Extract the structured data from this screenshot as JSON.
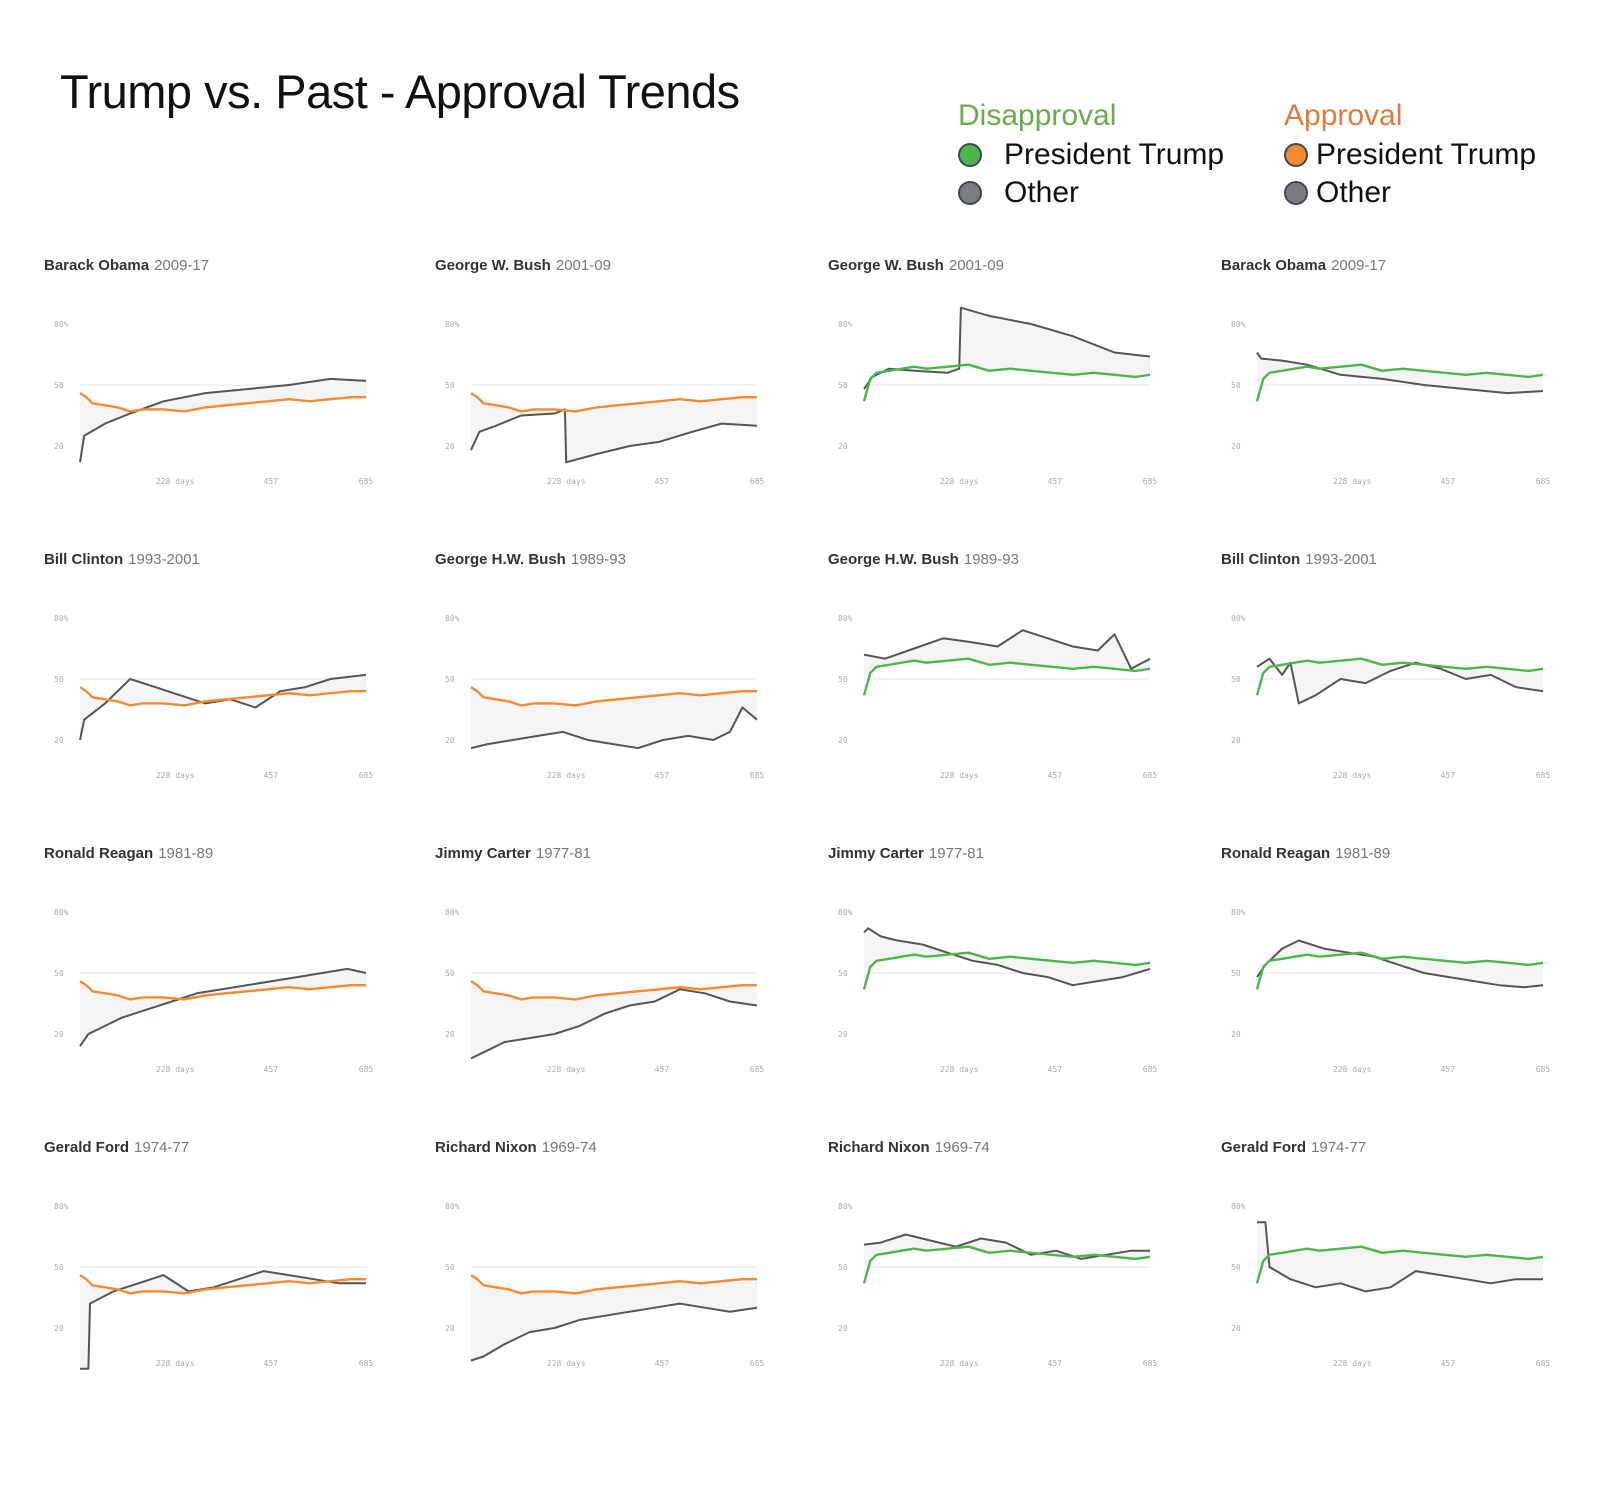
{
  "title": "Trump vs. Past - Approval Trends",
  "colors": {
    "trump_approval": "#f58a33",
    "trump_disapproval": "#4cb64a",
    "other": "#555555",
    "disapproval_heading": "#6aab4a",
    "approval_heading": "#e07b3c",
    "other_dot": "#7b7d82"
  },
  "legend": {
    "disapproval": {
      "heading": "Disapproval",
      "items": [
        {
          "label": "President Trump"
        },
        {
          "label": "Other"
        }
      ]
    },
    "approval": {
      "heading": "Approval",
      "items": [
        {
          "label": "President Trump"
        },
        {
          "label": "Other"
        }
      ]
    }
  },
  "axis": {
    "y_ticks": [
      "80%",
      "50",
      "20"
    ],
    "x_ticks": [
      "228 days",
      "457",
      "685"
    ]
  },
  "chart_data": {
    "type": "line",
    "title": "Trump vs. Past - Approval Trends",
    "x_unit": "days",
    "xlim": [
      0,
      685
    ],
    "ylim": [
      0,
      100
    ],
    "reference_line": 50,
    "trump": {
      "approval": {
        "x": [
          0,
          15,
          30,
          60,
          90,
          120,
          150,
          200,
          250,
          300,
          350,
          400,
          450,
          500,
          550,
          600,
          650,
          685
        ],
        "y": [
          42,
          53,
          56,
          57,
          58,
          59,
          58,
          59,
          60,
          57,
          58,
          57,
          56,
          55,
          56,
          55,
          54,
          55
        ]
      },
      "disapproval": {
        "x": [
          0,
          15,
          30,
          60,
          90,
          120,
          150,
          200,
          250,
          300,
          350,
          400,
          450,
          500,
          550,
          600,
          650,
          685
        ],
        "y": [
          46,
          44,
          41,
          40,
          39,
          37,
          38,
          38,
          37,
          39,
          40,
          41,
          42,
          43,
          42,
          43,
          44,
          44
        ]
      }
    },
    "panels": [
      {
        "name": "Barack Obama",
        "years": "2009-17",
        "measure": "disapproval",
        "x": [
          0,
          10,
          60,
          120,
          200,
          300,
          400,
          500,
          600,
          685
        ],
        "y": [
          12,
          25,
          31,
          36,
          42,
          46,
          48,
          50,
          53,
          52
        ]
      },
      {
        "name": "George W. Bush",
        "years": "2001-09",
        "measure": "disapproval",
        "x": [
          0,
          20,
          60,
          120,
          200,
          225,
          228,
          300,
          380,
          450,
          530,
          600,
          685
        ],
        "y": [
          18,
          27,
          30,
          35,
          36,
          38,
          12,
          16,
          20,
          22,
          27,
          31,
          30
        ]
      },
      {
        "name": "George W. Bush",
        "years": "2001-09",
        "measure": "approval",
        "x": [
          0,
          20,
          60,
          120,
          200,
          228,
          232,
          300,
          400,
          500,
          600,
          685
        ],
        "y": [
          48,
          54,
          58,
          57,
          56,
          58,
          88,
          84,
          80,
          74,
          66,
          64
        ]
      },
      {
        "name": "Barack Obama",
        "years": "2009-17",
        "measure": "approval",
        "x": [
          0,
          10,
          60,
          120,
          200,
          300,
          400,
          500,
          600,
          685
        ],
        "y": [
          66,
          63,
          62,
          60,
          55,
          53,
          50,
          48,
          46,
          47
        ]
      },
      {
        "name": "Bill Clinton",
        "years": "1993-2001",
        "measure": "disapproval",
        "x": [
          0,
          10,
          60,
          120,
          180,
          240,
          300,
          360,
          420,
          480,
          540,
          600,
          685
        ],
        "y": [
          20,
          30,
          38,
          50,
          46,
          42,
          38,
          40,
          36,
          44,
          46,
          50,
          52
        ]
      },
      {
        "name": "George H.W. Bush",
        "years": "1989-93",
        "measure": "disapproval",
        "x": [
          0,
          40,
          100,
          160,
          220,
          280,
          340,
          400,
          460,
          520,
          580,
          620,
          650,
          685
        ],
        "y": [
          16,
          18,
          20,
          22,
          24,
          20,
          18,
          16,
          20,
          22,
          20,
          24,
          36,
          30
        ]
      },
      {
        "name": "George H.W. Bush",
        "years": "1989-93",
        "measure": "approval",
        "x": [
          0,
          50,
          120,
          190,
          260,
          320,
          380,
          440,
          500,
          560,
          600,
          640,
          685
        ],
        "y": [
          62,
          60,
          65,
          70,
          68,
          66,
          74,
          70,
          66,
          64,
          72,
          55,
          60
        ]
      },
      {
        "name": "Bill Clinton",
        "years": "1993-2001",
        "measure": "approval",
        "x": [
          0,
          30,
          60,
          80,
          100,
          140,
          200,
          260,
          320,
          380,
          440,
          500,
          560,
          620,
          685
        ],
        "y": [
          56,
          60,
          52,
          58,
          38,
          42,
          50,
          48,
          54,
          58,
          55,
          50,
          52,
          46,
          44
        ]
      },
      {
        "name": "Ronald Reagan",
        "years": "1981-89",
        "measure": "disapproval",
        "x": [
          0,
          20,
          60,
          100,
          160,
          220,
          280,
          340,
          400,
          460,
          520,
          580,
          640,
          685
        ],
        "y": [
          14,
          20,
          24,
          28,
          32,
          36,
          40,
          42,
          44,
          46,
          48,
          50,
          52,
          50
        ]
      },
      {
        "name": "Jimmy Carter",
        "years": "1977-81",
        "measure": "disapproval",
        "x": [
          0,
          40,
          80,
          140,
          200,
          260,
          320,
          380,
          440,
          500,
          560,
          620,
          685
        ],
        "y": [
          8,
          12,
          16,
          18,
          20,
          24,
          30,
          34,
          36,
          42,
          40,
          36,
          34
        ]
      },
      {
        "name": "Jimmy Carter",
        "years": "1977-81",
        "measure": "approval",
        "x": [
          0,
          10,
          40,
          80,
          140,
          200,
          260,
          320,
          380,
          440,
          500,
          560,
          620,
          685
        ],
        "y": [
          70,
          72,
          68,
          66,
          64,
          60,
          56,
          54,
          50,
          48,
          44,
          46,
          48,
          52
        ]
      },
      {
        "name": "Ronald Reagan",
        "years": "1981-89",
        "measure": "approval",
        "x": [
          0,
          20,
          60,
          100,
          160,
          220,
          280,
          340,
          400,
          460,
          520,
          580,
          640,
          685
        ],
        "y": [
          48,
          54,
          62,
          66,
          62,
          60,
          58,
          54,
          50,
          48,
          46,
          44,
          43,
          44
        ]
      },
      {
        "name": "Gerald Ford",
        "years": "1974-77",
        "measure": "disapproval",
        "x": [
          0,
          20,
          24,
          80,
          140,
          200,
          260,
          320,
          380,
          440,
          500,
          560,
          620,
          685
        ],
        "y": [
          0,
          0,
          32,
          38,
          42,
          46,
          38,
          40,
          44,
          48,
          46,
          44,
          42,
          42
        ]
      },
      {
        "name": "Richard Nixon",
        "years": "1969-74",
        "measure": "disapproval",
        "x": [
          0,
          30,
          80,
          140,
          200,
          260,
          320,
          380,
          440,
          500,
          560,
          620,
          685
        ],
        "y": [
          4,
          6,
          12,
          18,
          20,
          24,
          26,
          28,
          30,
          32,
          30,
          28,
          30
        ]
      },
      {
        "name": "Richard Nixon",
        "years": "1969-74",
        "measure": "approval",
        "x": [
          0,
          40,
          100,
          160,
          220,
          280,
          340,
          400,
          460,
          520,
          580,
          640,
          685
        ],
        "y": [
          61,
          62,
          66,
          63,
          60,
          64,
          62,
          56,
          58,
          54,
          56,
          58,
          58
        ]
      },
      {
        "name": "Gerald Ford",
        "years": "1974-77",
        "measure": "approval",
        "x": [
          0,
          20,
          30,
          80,
          140,
          200,
          260,
          320,
          380,
          440,
          500,
          560,
          620,
          685
        ],
        "y": [
          72,
          72,
          50,
          44,
          40,
          42,
          38,
          40,
          48,
          46,
          44,
          42,
          44,
          44
        ]
      }
    ]
  }
}
